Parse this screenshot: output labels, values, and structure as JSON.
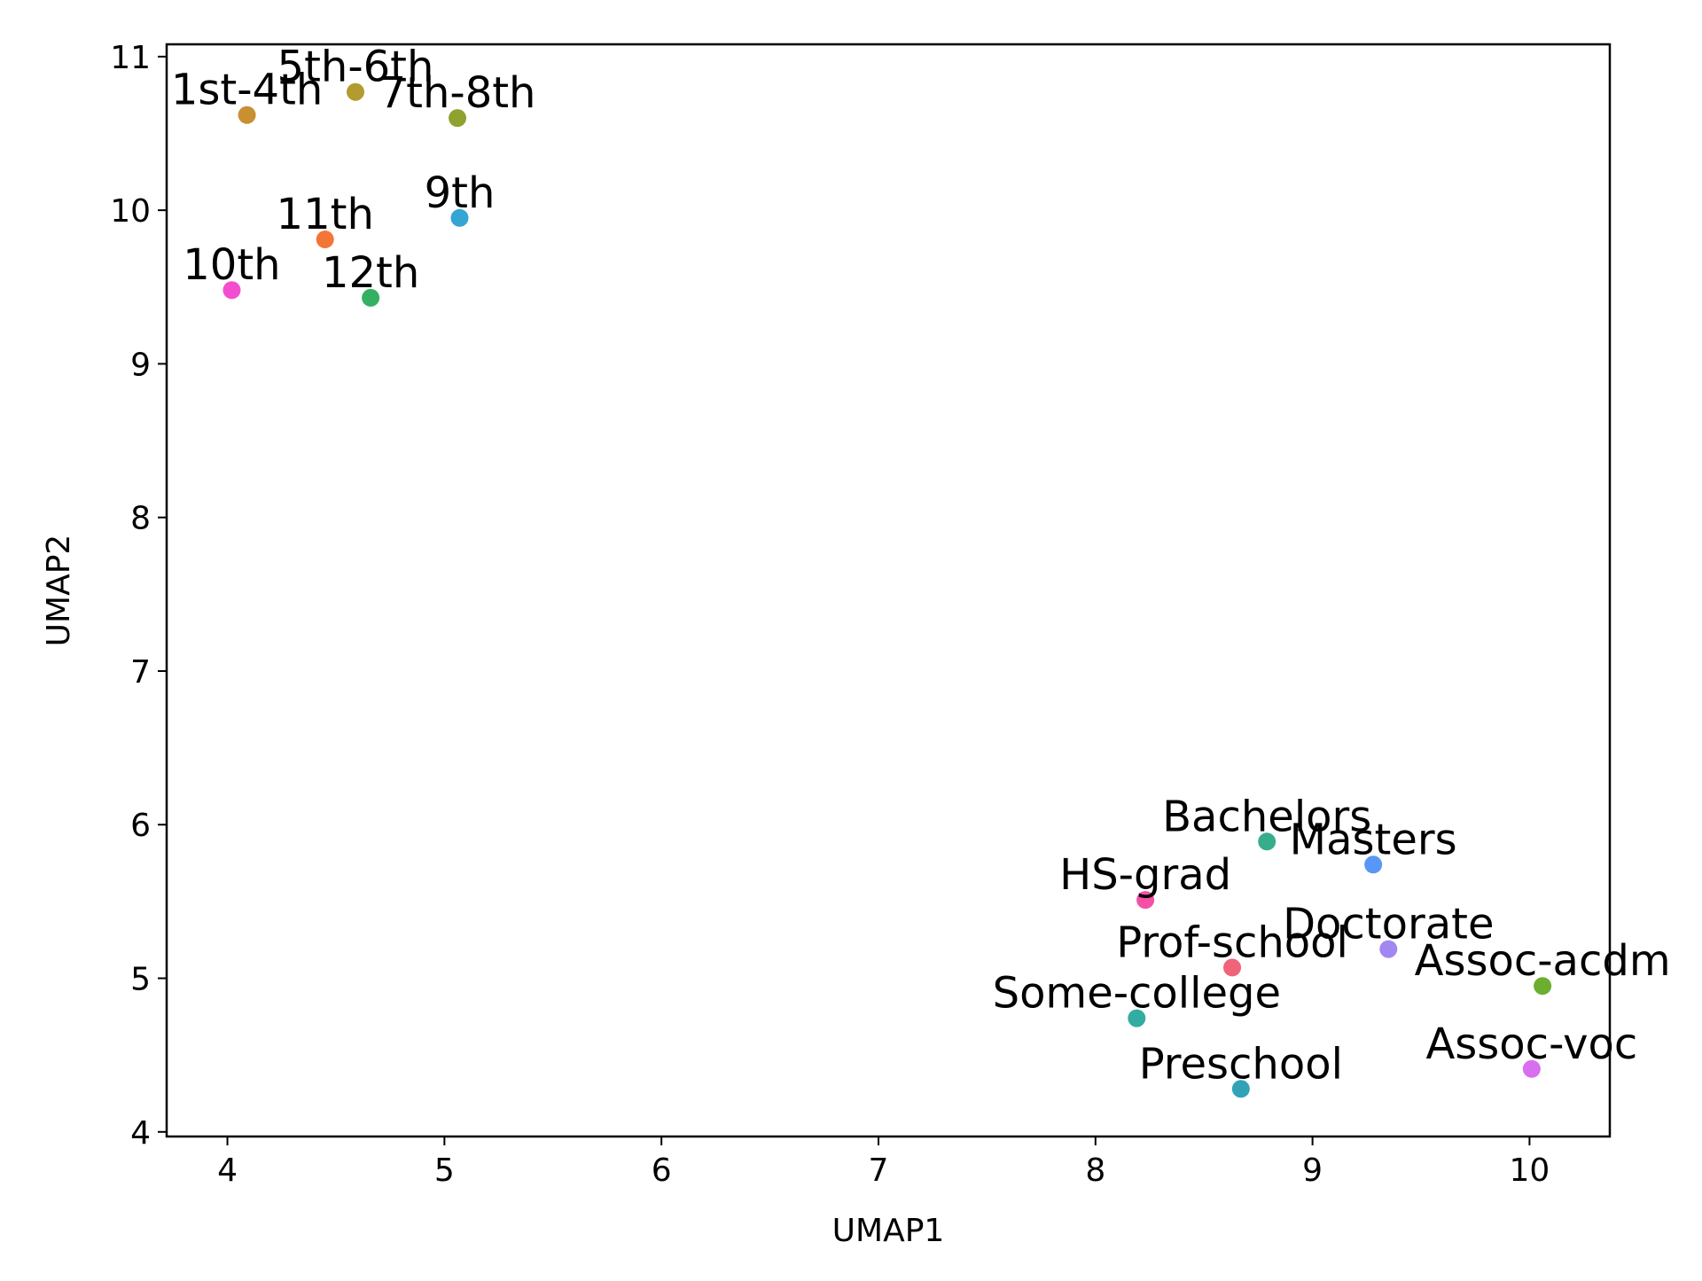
{
  "chart_data": {
    "type": "scatter",
    "title": "",
    "xlabel": "UMAP1",
    "ylabel": "UMAP2",
    "xlim": [
      3.72,
      10.37
    ],
    "ylim": [
      3.97,
      11.08
    ],
    "xticks": [
      4,
      5,
      6,
      7,
      8,
      9,
      10
    ],
    "yticks": [
      4,
      5,
      6,
      7,
      8,
      9,
      10,
      11
    ],
    "grid": false,
    "points": [
      {
        "label": "1st-4th",
        "x": 4.09,
        "y": 10.62,
        "color": "#c98f31"
      },
      {
        "label": "5th-6th",
        "x": 4.59,
        "y": 10.77,
        "color": "#b39b30"
      },
      {
        "label": "7th-8th",
        "x": 5.06,
        "y": 10.6,
        "color": "#8fa230"
      },
      {
        "label": "9th",
        "x": 5.07,
        "y": 9.95,
        "color": "#35a5d3"
      },
      {
        "label": "11th",
        "x": 4.45,
        "y": 9.81,
        "color": "#f47637"
      },
      {
        "label": "10th",
        "x": 4.02,
        "y": 9.48,
        "color": "#f24fd0"
      },
      {
        "label": "12th",
        "x": 4.66,
        "y": 9.43,
        "color": "#34b060"
      },
      {
        "label": "Bachelors",
        "x": 8.79,
        "y": 5.89,
        "color": "#37ae8b"
      },
      {
        "label": "Masters",
        "x": 9.28,
        "y": 5.74,
        "color": "#5897f5"
      },
      {
        "label": "HS-grad",
        "x": 8.23,
        "y": 5.51,
        "color": "#f550a5"
      },
      {
        "label": "Doctorate",
        "x": 9.35,
        "y": 5.19,
        "color": "#a286f2"
      },
      {
        "label": "Prof-school",
        "x": 8.63,
        "y": 5.07,
        "color": "#f0647a"
      },
      {
        "label": "Assoc-acdm",
        "x": 10.06,
        "y": 4.95,
        "color": "#6bae30"
      },
      {
        "label": "Some-college",
        "x": 8.19,
        "y": 4.74,
        "color": "#33aca1"
      },
      {
        "label": "Assoc-voc",
        "x": 10.01,
        "y": 4.41,
        "color": "#d86ef0"
      },
      {
        "label": "Preschool",
        "x": 8.67,
        "y": 4.28,
        "color": "#32a3b6"
      }
    ]
  }
}
